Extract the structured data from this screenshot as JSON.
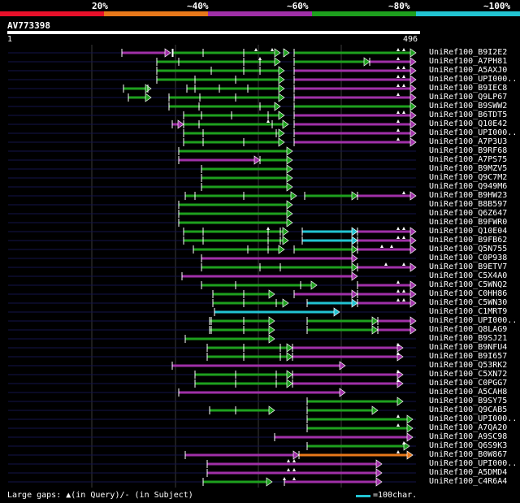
{
  "legend": {
    "segments": [
      {
        "label": "20%",
        "color": "#e8102a"
      },
      {
        "label": "~40%",
        "color": "#e8781a"
      },
      {
        "label": "~60%",
        "color": "#a030a8"
      },
      {
        "label": "~80%",
        "color": "#1ea01e"
      },
      {
        "label": "~100%",
        "color": "#22c4d2"
      }
    ]
  },
  "query": {
    "title": "AV773398",
    "start": "1",
    "end": "496"
  },
  "colors": {
    "green": "#1ea01e",
    "magenta": "#a030a8",
    "cyan": "#22c4d2",
    "orange": "#e8781a",
    "track": "#14144a",
    "grid": "#3a3a3a"
  },
  "hits": [
    "UniRef100_B9I2E2",
    "UniRef100_A7PH81",
    "UniRef100_A5AXJ0",
    "UniRef100_UPI000..",
    "UniRef100_B9IEC8",
    "UniRef100_Q9LP67",
    "UniRef100_B9SWW2",
    "UniRef100_B6TDT5",
    "UniRef100_Q10E42",
    "UniRef100_UPI000..",
    "UniRef100_A7P3U3",
    "UniRef100_B9RF68",
    "UniRef100_A7PS75",
    "UniRef100_B9MZV5",
    "UniRef100_Q9C7M2",
    "UniRef100_Q949M6",
    "UniRef100_B9HW23",
    "UniRef100_B8B597",
    "UniRef100_Q6Z647",
    "UniRef100_B9FWR0",
    "UniRef100_Q10E04",
    "UniRef100_B9FB62",
    "UniRef100_Q5N755",
    "UniRef100_C0P938",
    "UniRef100_B9ETV7",
    "UniRef100_C5X4A0",
    "UniRef100_C5WNQ2",
    "UniRef100_C0HH86",
    "UniRef100_C5WN30",
    "UniRef100_C1MRT9",
    "UniRef100_UPI000..",
    "UniRef100_Q8LAG9",
    "UniRef100_B9SJ21",
    "UniRef100_B9NFU4",
    "UniRef100_B9I657",
    "UniRef100_Q53RK2",
    "UniRef100_C5XN72",
    "UniRef100_C0PGG7",
    "UniRef100_A5CAH8",
    "UniRef100_B9SY75",
    "UniRef100_Q9CAB5",
    "UniRef100_UPI000..",
    "UniRef100_A7QA20",
    "UniRef100_A9SC98",
    "UniRef100_Q6S9K3",
    "UniRef100_B0W867",
    "UniRef100_UPI000..",
    "UniRef100_A5DMD4",
    "UniRef100_C4R6A4"
  ],
  "footer": {
    "gaps_text": "Large gaps: ▲(in Query)/- (in Subject)",
    "scale_text": "=100char."
  }
}
